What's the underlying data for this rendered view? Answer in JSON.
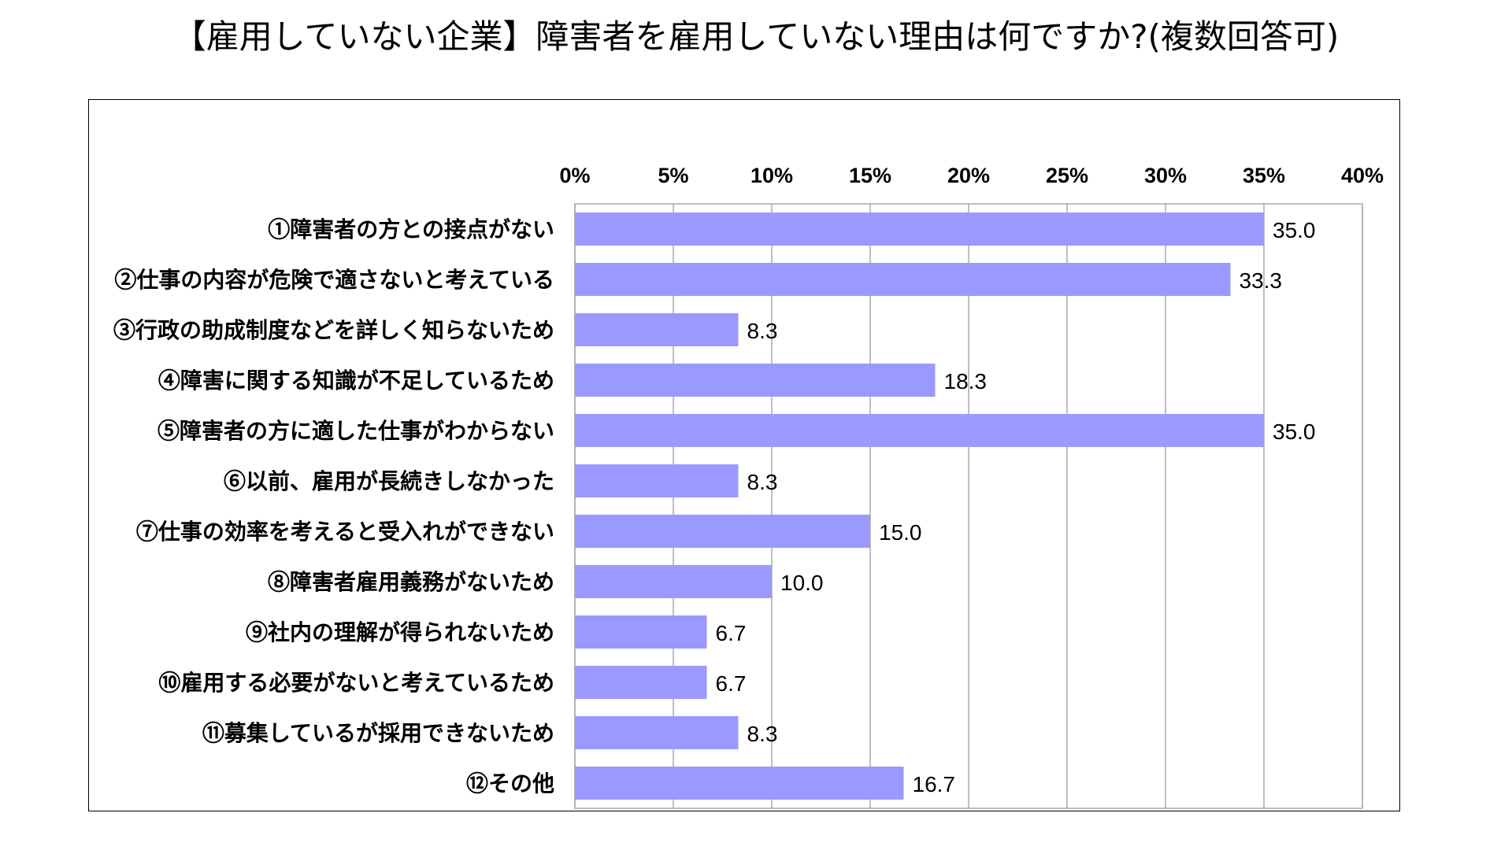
{
  "chart_data": {
    "type": "bar",
    "orientation": "horizontal",
    "title": "【雇用していない企業】障害者を雇用していない理由は何ですか?(複数回答可)",
    "categories": [
      "①障害者の方との接点がない",
      "②仕事の内容が危険で適さないと考えている",
      "③行政の助成制度などを詳しく知らないため",
      "④障害に関する知識が不足しているため",
      "⑤障害者の方に適した仕事がわからない",
      "⑥以前、雇用が長続きしなかった",
      "⑦仕事の効率を考えると受入れができない",
      "⑧障害者雇用義務がないため",
      "⑨社内の理解が得られないため",
      "⑩雇用する必要がないと考えているため",
      "⑪募集しているが採用できないため",
      "⑫その他"
    ],
    "values": [
      35.0,
      33.3,
      8.3,
      18.3,
      35.0,
      8.3,
      15.0,
      10.0,
      6.7,
      6.7,
      8.3,
      16.7
    ],
    "value_labels": [
      "35.0",
      "33.3",
      "8.3",
      "18.3",
      "35.0",
      "8.3",
      "15.0",
      "10.0",
      "6.7",
      "6.7",
      "8.3",
      "16.7"
    ],
    "xlim": [
      0,
      40
    ],
    "x_ticks": [
      0,
      5,
      10,
      15,
      20,
      25,
      30,
      35,
      40
    ],
    "x_tick_labels": [
      "0%",
      "5%",
      "10%",
      "15%",
      "20%",
      "25%",
      "30%",
      "35%",
      "40%"
    ],
    "x_axis_position": "top",
    "grid": true,
    "bar_color": "#9999ff",
    "grid_color": "#aaaaaa",
    "legend": "none"
  }
}
